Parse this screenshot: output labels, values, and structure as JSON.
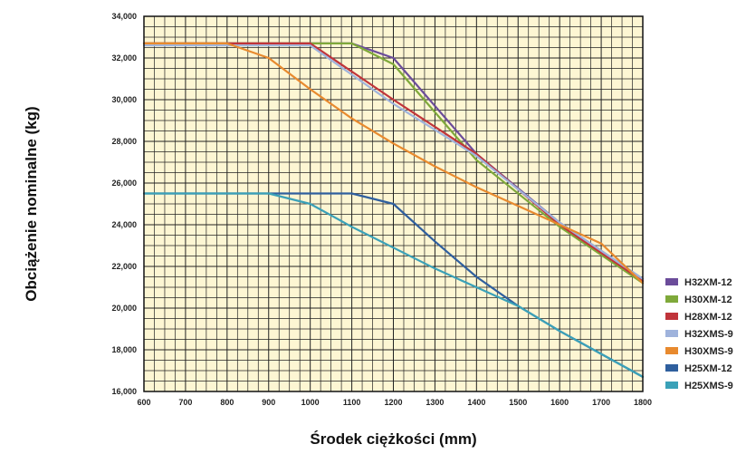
{
  "chart_data": {
    "type": "line",
    "title": "",
    "xlabel": "Środek ciężkości (mm)",
    "ylabel": "Obciążenie nominalne (kg)",
    "xlim": [
      600,
      1800
    ],
    "ylim": [
      16000,
      34000
    ],
    "x_ticks": [
      600,
      700,
      800,
      900,
      1000,
      1100,
      1200,
      1300,
      1400,
      1500,
      1600,
      1700,
      1800
    ],
    "x_tick_labels": [
      "600",
      "700",
      "800",
      "900",
      "1000",
      "1100",
      "1200",
      "1300",
      "1400",
      "1500",
      "1600",
      "1700",
      "1800"
    ],
    "y_ticks": [
      16000,
      18000,
      20000,
      22000,
      24000,
      26000,
      28000,
      30000,
      32000,
      34000
    ],
    "y_tick_labels": [
      "16,000",
      "18,000",
      "20,000",
      "22,000",
      "24,000",
      "26,000",
      "28,000",
      "30,000",
      "32,000",
      "34,000"
    ],
    "grid": true,
    "legend_position": "bottom-right",
    "plot_background": "#fdf6d3",
    "series": [
      {
        "name": "H32XM-12",
        "color": "#6b4c9a",
        "points": [
          [
            600,
            32700
          ],
          [
            1100,
            32700
          ],
          [
            1200,
            32000
          ],
          [
            1400,
            27400
          ],
          [
            1600,
            24100
          ],
          [
            1800,
            21400
          ]
        ]
      },
      {
        "name": "H30XM-12",
        "color": "#7fa93a",
        "points": [
          [
            600,
            32700
          ],
          [
            1100,
            32700
          ],
          [
            1200,
            31700
          ],
          [
            1400,
            27100
          ],
          [
            1600,
            23900
          ],
          [
            1800,
            21200
          ]
        ]
      },
      {
        "name": "H28XM-12",
        "color": "#c0343a",
        "points": [
          [
            600,
            32700
          ],
          [
            1000,
            32700
          ],
          [
            1200,
            30000
          ],
          [
            1400,
            27400
          ],
          [
            1600,
            24000
          ],
          [
            1800,
            21300
          ]
        ]
      },
      {
        "name": "H32XMS-9",
        "color": "#9fb3dc",
        "points": [
          [
            600,
            32600
          ],
          [
            1000,
            32600
          ],
          [
            1200,
            29800
          ],
          [
            1400,
            27300
          ],
          [
            1600,
            24100
          ],
          [
            1800,
            21400
          ]
        ]
      },
      {
        "name": "H30XMS-9",
        "color": "#e88a2e",
        "points": [
          [
            600,
            32700
          ],
          [
            800,
            32700
          ],
          [
            900,
            32000
          ],
          [
            1000,
            30500
          ],
          [
            1100,
            29100
          ],
          [
            1200,
            27900
          ],
          [
            1300,
            26800
          ],
          [
            1400,
            25800
          ],
          [
            1500,
            24900
          ],
          [
            1600,
            24000
          ],
          [
            1700,
            23100
          ],
          [
            1800,
            21200
          ]
        ]
      },
      {
        "name": "H25XM-12",
        "color": "#2f5f9e",
        "points": [
          [
            600,
            25500
          ],
          [
            1100,
            25500
          ],
          [
            1200,
            25000
          ],
          [
            1300,
            23200
          ],
          [
            1400,
            21500
          ],
          [
            1500,
            20100
          ],
          [
            1600,
            18900
          ],
          [
            1700,
            17800
          ],
          [
            1800,
            16700
          ]
        ]
      },
      {
        "name": "H25XMS-9",
        "color": "#3aa1b8",
        "points": [
          [
            600,
            25500
          ],
          [
            900,
            25500
          ],
          [
            1000,
            25000
          ],
          [
            1100,
            23900
          ],
          [
            1200,
            22900
          ],
          [
            1300,
            21900
          ],
          [
            1400,
            21000
          ],
          [
            1500,
            20100
          ],
          [
            1600,
            18900
          ],
          [
            1700,
            17800
          ],
          [
            1800,
            16700
          ]
        ]
      }
    ]
  }
}
